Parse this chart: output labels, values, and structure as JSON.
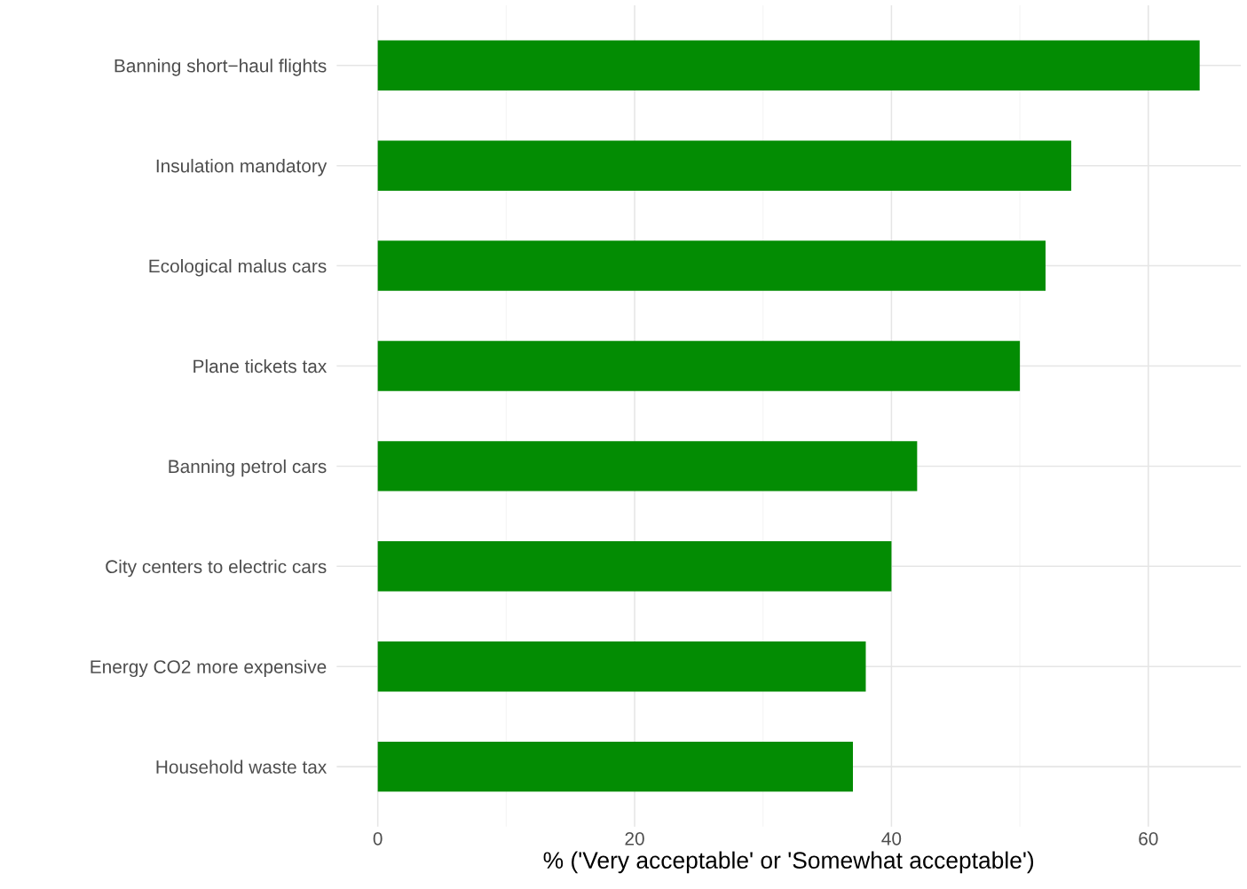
{
  "chart_data": {
    "type": "bar",
    "orientation": "horizontal",
    "xlabel": "% ('Very acceptable' or 'Somewhat acceptable')",
    "categories": [
      "Banning short−haul flights",
      "Insulation mandatory",
      "Ecological malus cars",
      "Plane tickets tax",
      "Banning petrol cars",
      "City centers to electric cars",
      "Energy CO2 more expensive",
      "Household waste tax"
    ],
    "values": [
      64,
      54,
      52,
      50,
      42,
      40,
      38,
      37
    ],
    "color": "#038c03",
    "xlim": [
      -3.2,
      67.2
    ],
    "xticks": [
      0,
      {
        "value": 10,
        "label": null
      },
      20,
      {
        "value": 30,
        "label": null
      },
      40,
      {
        "value": 50,
        "label": null
      },
      60
    ],
    "grid": true
  }
}
